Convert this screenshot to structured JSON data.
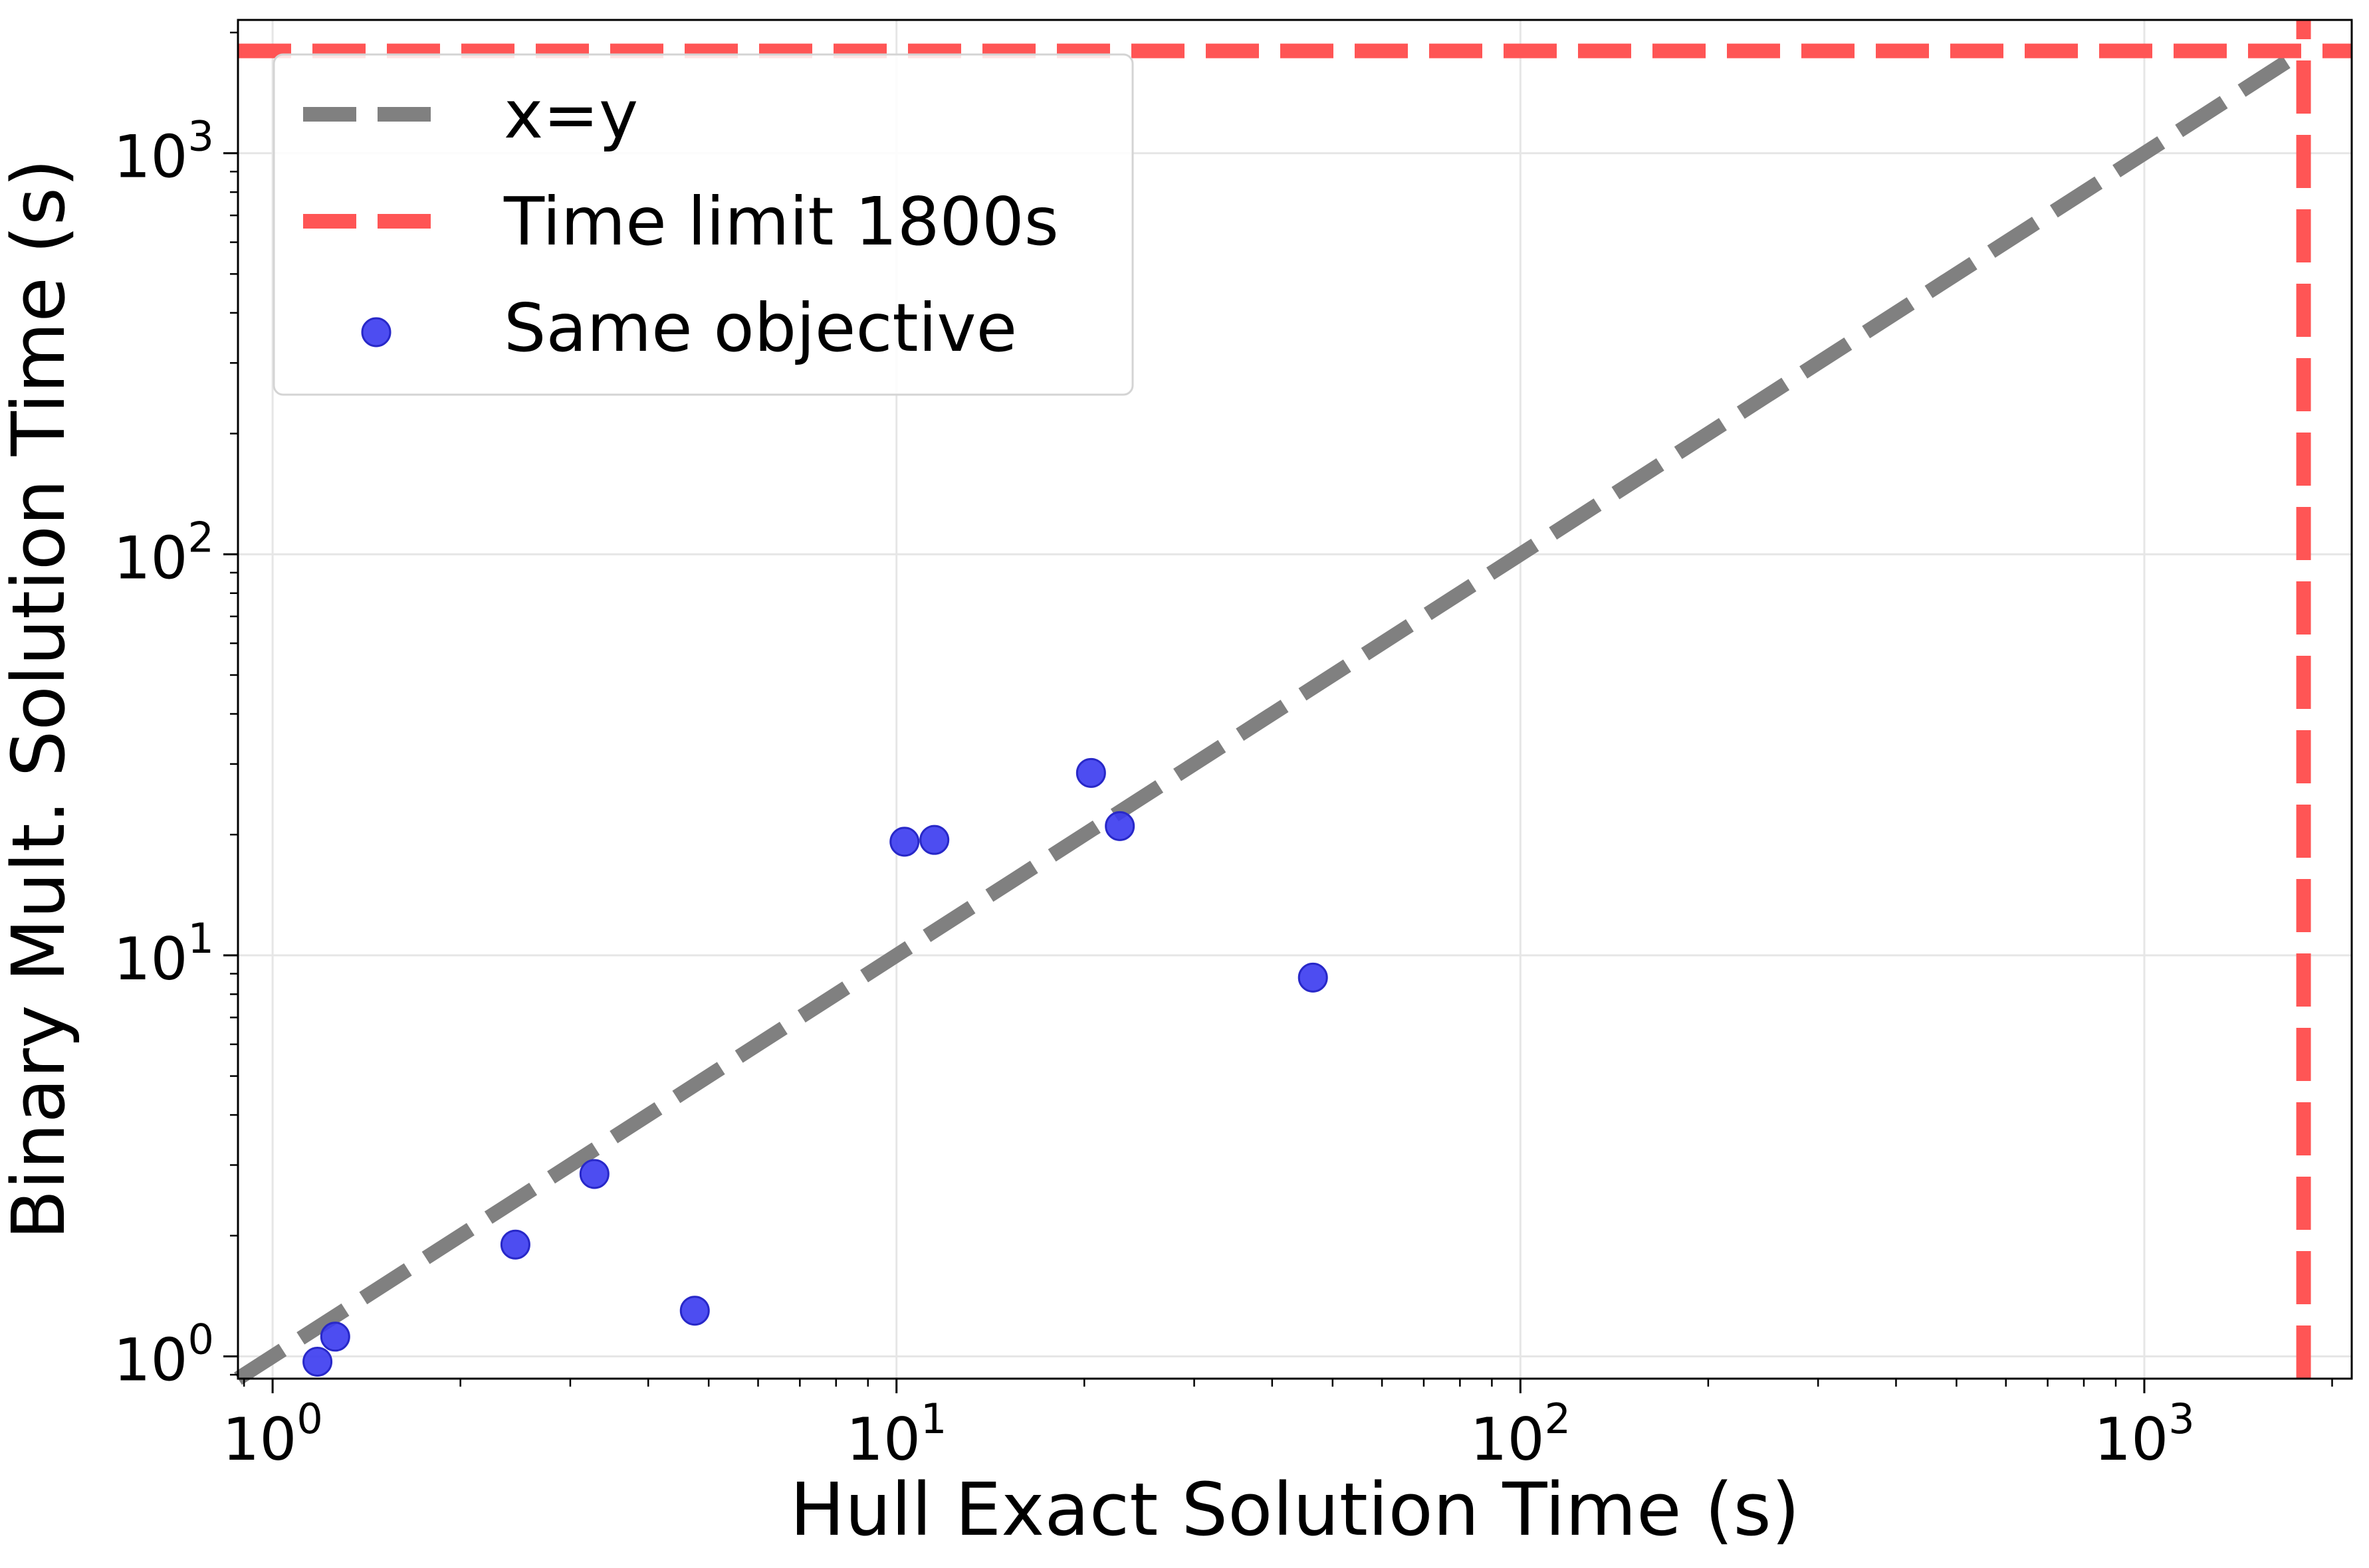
{
  "chart_data": {
    "type": "scatter",
    "title": "",
    "xlabel": "Hull Exact Solution Time (s)",
    "ylabel": "Binary Mult. Solution Time (s)",
    "xscale": "log",
    "yscale": "log",
    "xlim": [
      0.88,
      2150
    ],
    "ylim": [
      0.88,
      2150
    ],
    "grid": true,
    "legend_position": "top-left",
    "xticks": [
      {
        "base": "10",
        "exp": "0",
        "value": 1
      },
      {
        "base": "10",
        "exp": "1",
        "value": 10
      },
      {
        "base": "10",
        "exp": "2",
        "value": 100
      },
      {
        "base": "10",
        "exp": "3",
        "value": 1000
      }
    ],
    "yticks": [
      {
        "base": "10",
        "exp": "0",
        "value": 1
      },
      {
        "base": "10",
        "exp": "1",
        "value": 10
      },
      {
        "base": "10",
        "exp": "2",
        "value": 100
      },
      {
        "base": "10",
        "exp": "3",
        "value": 1000
      }
    ],
    "reference_lines": [
      {
        "name": "x=y",
        "kind": "diagonal",
        "color": "#808080",
        "dash": true
      },
      {
        "name": "Time limit 1800s",
        "kind": "limit",
        "value": 1800,
        "color": "#ff5555",
        "dash": true
      }
    ],
    "series": [
      {
        "name": "Same objective",
        "color": "#3a3aef",
        "points": [
          {
            "x": 1.18,
            "y": 0.97
          },
          {
            "x": 1.26,
            "y": 1.12
          },
          {
            "x": 2.45,
            "y": 1.9
          },
          {
            "x": 3.28,
            "y": 2.85
          },
          {
            "x": 4.75,
            "y": 1.3
          },
          {
            "x": 10.3,
            "y": 19.2
          },
          {
            "x": 11.5,
            "y": 19.4
          },
          {
            "x": 20.5,
            "y": 28.5
          },
          {
            "x": 22.8,
            "y": 21.0
          },
          {
            "x": 46.5,
            "y": 8.8
          }
        ]
      }
    ]
  }
}
